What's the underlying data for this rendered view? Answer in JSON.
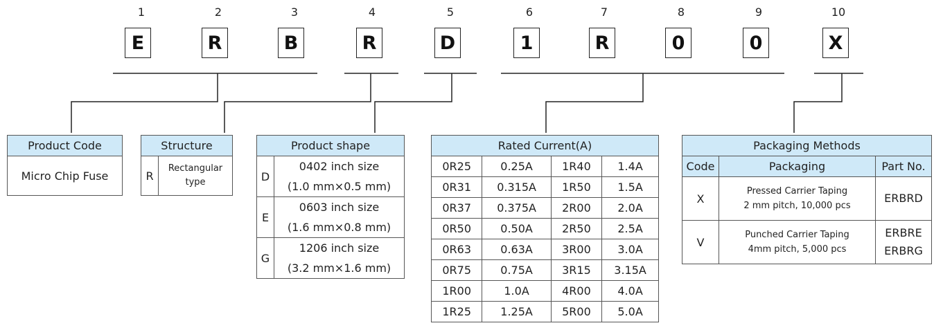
{
  "positions": [
    "1",
    "2",
    "3",
    "4",
    "5",
    "6",
    "7",
    "8",
    "9",
    "10"
  ],
  "code_chars": [
    "E",
    "R",
    "B",
    "R",
    "D",
    "1",
    "R",
    "0",
    "0",
    "X"
  ],
  "product_code": {
    "header": "Product Code",
    "value": "Micro Chip Fuse"
  },
  "structure": {
    "header": "Structure",
    "code": "R",
    "label": "Rectangular type"
  },
  "product_shape": {
    "header": "Product shape",
    "rows": [
      {
        "code": "D",
        "size": "0402 inch size",
        "dims": "(1.0 mm×0.5 mm)"
      },
      {
        "code": "E",
        "size": "0603 inch size",
        "dims": "(1.6 mm×0.8 mm)"
      },
      {
        "code": "G",
        "size": "1206 inch size",
        "dims": "(3.2 mm×1.6 mm)"
      }
    ]
  },
  "rated_current": {
    "header": "Rated Current(A)",
    "rows": [
      [
        "0R25",
        "0.25A",
        "1R40",
        "1.4A"
      ],
      [
        "0R31",
        "0.315A",
        "1R50",
        "1.5A"
      ],
      [
        "0R37",
        "0.375A",
        "2R00",
        "2.0A"
      ],
      [
        "0R50",
        "0.50A",
        "2R50",
        "2.5A"
      ],
      [
        "0R63",
        "0.63A",
        "3R00",
        "3.0A"
      ],
      [
        "0R75",
        "0.75A",
        "3R15",
        "3.15A"
      ],
      [
        "1R00",
        "1.0A",
        "4R00",
        "4.0A"
      ],
      [
        "1R25",
        "1.25A",
        "5R00",
        "5.0A"
      ]
    ]
  },
  "packaging": {
    "header": "Packaging Methods",
    "col_code": "Code",
    "col_packaging": "Packaging",
    "col_part": "Part No.",
    "rows": [
      {
        "code": "X",
        "line1": "Pressed Carrier Taping",
        "line2": "2 mm pitch, 10,000 pcs",
        "part1": "ERBRD",
        "part2": ""
      },
      {
        "code": "V",
        "line1": "Punched Carrier Taping",
        "line2": "4mm pitch,  5,000 pcs",
        "part1": "ERBRE",
        "part2": "ERBRG"
      }
    ]
  },
  "colors": {
    "header_bg": "#cfe9f8",
    "line": "#222222"
  }
}
